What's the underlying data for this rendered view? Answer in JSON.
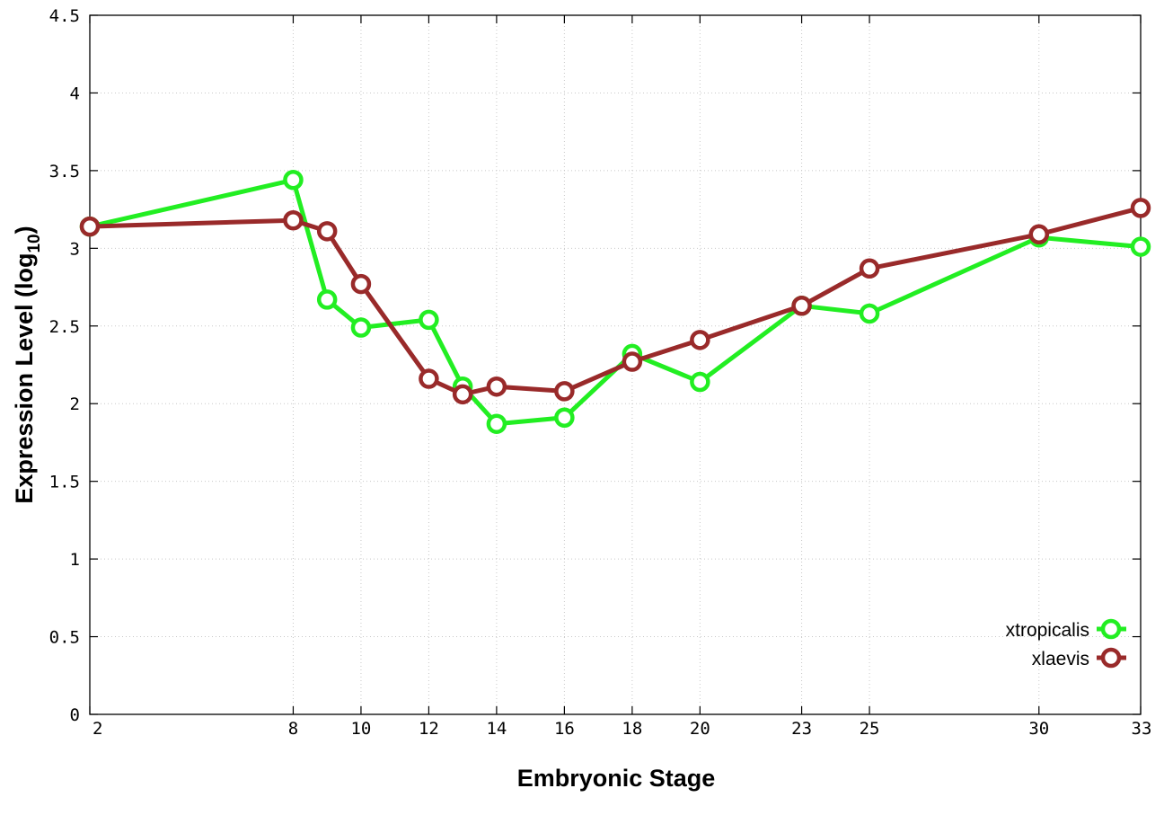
{
  "chart_data": {
    "type": "line",
    "xlabel": "Embryonic Stage",
    "ylabel": "Expression Level (log",
    "ylabel_subscript": "10",
    "ylabel_suffix": ")",
    "xlim": [
      2,
      33
    ],
    "ylim": [
      0,
      4.5
    ],
    "x_ticks": [
      2,
      8,
      10,
      12,
      14,
      16,
      18,
      20,
      23,
      25,
      30,
      33
    ],
    "x_tick_labels": [
      "2",
      "8",
      "10",
      "12",
      "14",
      "16",
      "18",
      "20",
      "23",
      "25",
      "30",
      "33"
    ],
    "y_ticks": [
      0,
      0.5,
      1,
      1.5,
      2,
      2.5,
      3,
      3.5,
      4,
      4.5
    ],
    "y_tick_labels": [
      "0",
      "0.5",
      "1",
      "1.5",
      "2",
      "2.5",
      "3",
      "3.5",
      "4",
      "4.5"
    ],
    "grid": true,
    "legend_position": "bottom-right",
    "series": [
      {
        "name": "xtropicalis",
        "color": "#22ee22",
        "x": [
          2,
          8,
          9,
          10,
          12,
          13,
          14,
          16,
          18,
          20,
          23,
          25,
          30,
          33
        ],
        "y": [
          3.14,
          3.44,
          2.67,
          2.49,
          2.54,
          2.11,
          1.87,
          1.91,
          2.32,
          2.14,
          2.63,
          2.58,
          3.07,
          3.01
        ]
      },
      {
        "name": "xlaevis",
        "color": "#992a2a",
        "x": [
          2,
          8,
          9,
          10,
          12,
          13,
          14,
          16,
          18,
          20,
          23,
          25,
          30,
          33
        ],
        "y": [
          3.14,
          3.18,
          3.11,
          2.77,
          2.16,
          2.06,
          2.11,
          2.08,
          2.27,
          2.41,
          2.63,
          2.87,
          3.09,
          3.26
        ]
      }
    ]
  }
}
